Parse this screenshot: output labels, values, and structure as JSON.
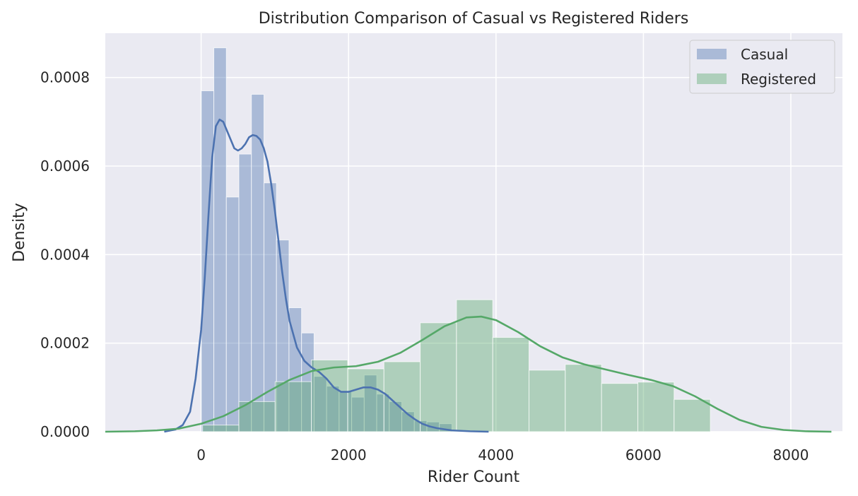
{
  "chart_data": {
    "type": "histogram",
    "title": "Distribution Comparison of Casual vs Registered Riders",
    "xlabel": "Rider Count",
    "ylabel": "Density",
    "xlim": [
      -1300,
      8700
    ],
    "ylim": [
      0,
      0.0009
    ],
    "xticks": [
      0,
      2000,
      4000,
      6000,
      8000
    ],
    "xtick_labels": [
      "0",
      "2000",
      "4000",
      "6000",
      "8000"
    ],
    "yticks": [
      0,
      0.0002,
      0.0004,
      0.0006,
      0.0008
    ],
    "ytick_labels": [
      "0.0000",
      "0.0002",
      "0.0004",
      "0.0006",
      "0.0008"
    ],
    "grid": true,
    "legend": {
      "placement": "top-right",
      "entries": [
        "Casual",
        "Registered"
      ]
    },
    "series": [
      {
        "name": "Casual",
        "color": "#4c72b0",
        "hist_alpha": 0.4,
        "bins": [
          {
            "x0": 2,
            "x1": 172,
            "density": 0.00077
          },
          {
            "x0": 172,
            "x1": 342,
            "density": 0.000867
          },
          {
            "x0": 342,
            "x1": 512,
            "density": 0.00053
          },
          {
            "x0": 512,
            "x1": 682,
            "density": 0.000627
          },
          {
            "x0": 682,
            "x1": 852,
            "density": 0.000762
          },
          {
            "x0": 852,
            "x1": 1022,
            "density": 0.000562
          },
          {
            "x0": 1022,
            "x1": 1192,
            "density": 0.000433
          },
          {
            "x0": 1192,
            "x1": 1362,
            "density": 0.00028
          },
          {
            "x0": 1362,
            "x1": 1532,
            "density": 0.000223
          },
          {
            "x0": 1532,
            "x1": 1702,
            "density": 0.000125
          },
          {
            "x0": 1702,
            "x1": 1872,
            "density": 0.000103
          },
          {
            "x0": 1872,
            "x1": 2042,
            "density": 9.3e-05
          },
          {
            "x0": 2042,
            "x1": 2212,
            "density": 7.8e-05
          },
          {
            "x0": 2212,
            "x1": 2382,
            "density": 0.000128
          },
          {
            "x0": 2382,
            "x1": 2552,
            "density": 8.5e-05
          },
          {
            "x0": 2552,
            "x1": 2722,
            "density": 6.8e-05
          },
          {
            "x0": 2722,
            "x1": 2892,
            "density": 4.5e-05
          },
          {
            "x0": 2892,
            "x1": 3062,
            "density": 2.5e-05
          },
          {
            "x0": 3062,
            "x1": 3232,
            "density": 2.2e-05
          },
          {
            "x0": 3232,
            "x1": 3402,
            "density": 1.8e-05
          }
        ],
        "kde": [
          [
            -500,
            0.0
          ],
          [
            -350,
            5e-06
          ],
          [
            -250,
            1.5e-05
          ],
          [
            -150,
            4.5e-05
          ],
          [
            -75,
            0.00012
          ],
          [
            0,
            0.00023
          ],
          [
            50,
            0.00035
          ],
          [
            100,
            0.00049
          ],
          [
            150,
            0.00062
          ],
          [
            200,
            0.00069
          ],
          [
            250,
            0.000705
          ],
          [
            300,
            0.0007
          ],
          [
            350,
            0.00068
          ],
          [
            400,
            0.00066
          ],
          [
            450,
            0.00064
          ],
          [
            500,
            0.000635
          ],
          [
            550,
            0.00064
          ],
          [
            600,
            0.00065
          ],
          [
            650,
            0.000665
          ],
          [
            700,
            0.00067
          ],
          [
            750,
            0.000668
          ],
          [
            800,
            0.00066
          ],
          [
            850,
            0.00064
          ],
          [
            900,
            0.00061
          ],
          [
            950,
            0.00056
          ],
          [
            1000,
            0.0005
          ],
          [
            1050,
            0.00043
          ],
          [
            1100,
            0.00036
          ],
          [
            1150,
            0.0003
          ],
          [
            1200,
            0.00025
          ],
          [
            1300,
            0.00019
          ],
          [
            1400,
            0.00016
          ],
          [
            1500,
            0.000145
          ],
          [
            1600,
            0.000135
          ],
          [
            1700,
            0.00012
          ],
          [
            1800,
            0.0001
          ],
          [
            1900,
            9e-05
          ],
          [
            2000,
            9e-05
          ],
          [
            2100,
            9.5e-05
          ],
          [
            2200,
            0.0001
          ],
          [
            2300,
            0.0001
          ],
          [
            2400,
            9.5e-05
          ],
          [
            2500,
            8.5e-05
          ],
          [
            2600,
            7e-05
          ],
          [
            2700,
            5.5e-05
          ],
          [
            2800,
            4e-05
          ],
          [
            2900,
            2.8e-05
          ],
          [
            3000,
            1.8e-05
          ],
          [
            3100,
            1.2e-05
          ],
          [
            3200,
            8e-06
          ],
          [
            3400,
            3e-06
          ],
          [
            3650,
            1e-06
          ],
          [
            3900,
            0.0
          ]
        ]
      },
      {
        "name": "Registered",
        "color": "#55a868",
        "hist_alpha": 0.4,
        "bins": [
          {
            "x0": 20,
            "x1": 512,
            "density": 1.5e-05
          },
          {
            "x0": 512,
            "x1": 1004,
            "density": 6.8e-05
          },
          {
            "x0": 1004,
            "x1": 1496,
            "density": 0.000113
          },
          {
            "x0": 1496,
            "x1": 1988,
            "density": 0.000162
          },
          {
            "x0": 1988,
            "x1": 2480,
            "density": 0.000142
          },
          {
            "x0": 2480,
            "x1": 2972,
            "density": 0.000158
          },
          {
            "x0": 2972,
            "x1": 3464,
            "density": 0.000246
          },
          {
            "x0": 3464,
            "x1": 3956,
            "density": 0.000298
          },
          {
            "x0": 3956,
            "x1": 4448,
            "density": 0.000213
          },
          {
            "x0": 4448,
            "x1": 4940,
            "density": 0.000139
          },
          {
            "x0": 4940,
            "x1": 5432,
            "density": 0.000152
          },
          {
            "x0": 5432,
            "x1": 5924,
            "density": 0.000109
          },
          {
            "x0": 5924,
            "x1": 6416,
            "density": 0.000112
          },
          {
            "x0": 6416,
            "x1": 6908,
            "density": 7.3e-05
          }
        ],
        "kde": [
          [
            -1300,
            0.0
          ],
          [
            -900,
            1e-06
          ],
          [
            -600,
            3e-06
          ],
          [
            -300,
            7e-06
          ],
          [
            0,
            1.8e-05
          ],
          [
            300,
            3.5e-05
          ],
          [
            600,
            6e-05
          ],
          [
            900,
            9e-05
          ],
          [
            1200,
            0.000117
          ],
          [
            1500,
            0.000137
          ],
          [
            1800,
            0.000145
          ],
          [
            2100,
            0.000148
          ],
          [
            2400,
            0.000158
          ],
          [
            2700,
            0.000178
          ],
          [
            3000,
            0.000207
          ],
          [
            3300,
            0.000238
          ],
          [
            3600,
            0.000258
          ],
          [
            3800,
            0.00026
          ],
          [
            4000,
            0.000252
          ],
          [
            4300,
            0.000225
          ],
          [
            4600,
            0.000193
          ],
          [
            4900,
            0.000168
          ],
          [
            5200,
            0.000152
          ],
          [
            5500,
            0.00014
          ],
          [
            5800,
            0.000128
          ],
          [
            6100,
            0.000117
          ],
          [
            6400,
            0.000103
          ],
          [
            6700,
            8e-05
          ],
          [
            7000,
            5.2e-05
          ],
          [
            7300,
            2.7e-05
          ],
          [
            7600,
            1.1e-05
          ],
          [
            7900,
            4e-06
          ],
          [
            8200,
            1e-06
          ],
          [
            8550,
            0.0
          ]
        ]
      }
    ]
  }
}
